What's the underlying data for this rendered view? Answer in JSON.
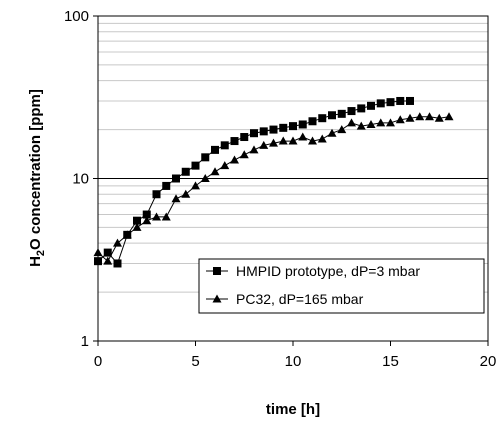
{
  "chart_data": {
    "type": "line",
    "xlabel": "time [h]",
    "ylabel_main": "H",
    "ylabel_sub": "2",
    "ylabel_rest": "O concentration [ppm]",
    "xlim": [
      0,
      20
    ],
    "ylim": [
      1,
      100
    ],
    "y_scale": "log",
    "grid": "horizontal minor gridlines",
    "x_ticks": [
      "0",
      "5",
      "10",
      "15",
      "20"
    ],
    "y_ticks": [
      "1",
      "10",
      "100"
    ],
    "legend_position": "lower-right",
    "series": [
      {
        "name": "HMPID prototype,  dP=3 mbar",
        "marker": "square",
        "x": [
          0,
          0.5,
          1,
          1.5,
          2,
          2.5,
          3,
          3.5,
          4,
          4.5,
          5,
          5.5,
          6,
          6.5,
          7,
          7.5,
          8,
          8.5,
          9,
          9.5,
          10,
          10.5,
          11,
          11.5,
          12,
          12.5,
          13,
          13.5,
          14,
          14.5,
          15,
          15.5,
          16
        ],
        "y": [
          3.1,
          3.5,
          3.0,
          4.5,
          5.5,
          6.0,
          8.0,
          9.0,
          10.0,
          11.0,
          12.0,
          13.5,
          15.0,
          16.0,
          17.0,
          18.0,
          19.0,
          19.5,
          20.0,
          20.5,
          21.0,
          21.5,
          22.5,
          23.5,
          24.5,
          25.0,
          26.0,
          27.0,
          28.0,
          29.0,
          29.5,
          30.0,
          30.0
        ]
      },
      {
        "name": "PC32,  dP=165 mbar",
        "marker": "triangle",
        "x": [
          0,
          0.5,
          1,
          1.5,
          2,
          2.5,
          3,
          3.5,
          4,
          4.5,
          5,
          5.5,
          6,
          6.5,
          7,
          7.5,
          8,
          8.5,
          9,
          9.5,
          10,
          10.5,
          11,
          11.5,
          12,
          12.5,
          13,
          13.5,
          14,
          14.5,
          15,
          15.5,
          16,
          16.5,
          17,
          17.5,
          18
        ],
        "y": [
          3.5,
          3.1,
          4.0,
          4.5,
          5.0,
          5.5,
          5.8,
          5.8,
          7.5,
          8.0,
          9.0,
          10.0,
          11.0,
          12.0,
          13.0,
          14.0,
          15.0,
          16.0,
          16.5,
          17.0,
          17.0,
          18.0,
          17.0,
          17.5,
          19.0,
          20.0,
          22.0,
          21.0,
          21.5,
          22.0,
          22.0,
          23.0,
          23.5,
          24.0,
          24.0,
          23.5,
          24.0
        ]
      }
    ]
  }
}
